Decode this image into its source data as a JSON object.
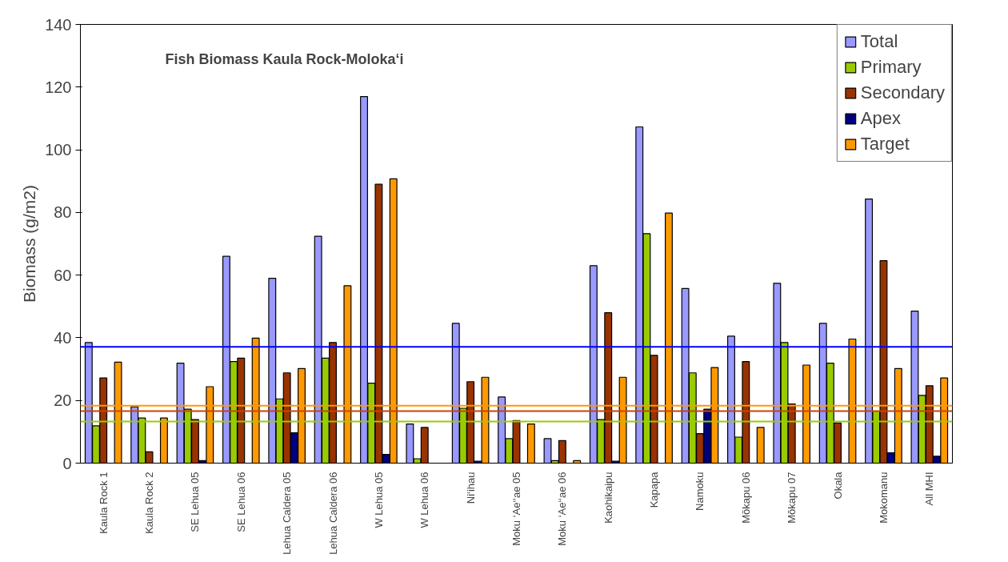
{
  "chart_data": {
    "type": "bar",
    "title": "Fish Biomass Kaula Rock-Moloka‘i",
    "ylabel": "Biomass (g/m2)",
    "categories": [
      "Kaula Rock 1",
      "Kaula Rock 2",
      "SE Lehua 05",
      "SE Lehua 06",
      "Lehua Caldera 05",
      "Lehua Caldera 06",
      "W Lehua 05",
      "W Lehua 06",
      "Ni‘ihau",
      "Moku ‘Ae‘‘ae 05",
      "Moku ‘Ae‘‘ae 06",
      "Kaohikaipu",
      "Kapapa",
      "Namoku",
      "Mōkapu 06",
      "Mōkapu 07",
      "Okala",
      "Mokomanu",
      "All MHI"
    ],
    "series": [
      {
        "name": "Total",
        "color": "#9999ff",
        "values": [
          38.5,
          18.0,
          31.9,
          66,
          59,
          72.4,
          117,
          12.5,
          44.6,
          21.1,
          7.8,
          63,
          107.3,
          55.7,
          40.5,
          57.4,
          44.6,
          84.3,
          48.5
        ]
      },
      {
        "name": "Primary",
        "color": "#99cc00",
        "values": [
          11.9,
          14.4,
          17.2,
          32.4,
          20.5,
          33.5,
          25.5,
          1.4,
          17.5,
          7.8,
          0.8,
          13.9,
          73.2,
          28.8,
          8.3,
          38.5,
          31.9,
          16.6,
          21.6
        ]
      },
      {
        "name": "Secondary",
        "color": "#993300",
        "values": [
          27.2,
          3.6,
          13.9,
          33.5,
          28.8,
          38.5,
          89,
          11.4,
          26,
          13.6,
          7.2,
          48,
          34.4,
          9.4,
          32.4,
          18.9,
          12.8,
          64.6,
          24.7
        ]
      },
      {
        "name": "Apex",
        "color": "#000080",
        "values": [
          null,
          null,
          0.8,
          null,
          9.7,
          null,
          2.8,
          null,
          0.6,
          null,
          null,
          0.6,
          null,
          17.2,
          null,
          null,
          null,
          3.3,
          2.2
        ]
      },
      {
        "name": "Target",
        "color": "#ff9900",
        "values": [
          32.2,
          14.4,
          24.4,
          39.9,
          30.2,
          56.6,
          90.7,
          null,
          27.4,
          12.5,
          0.8,
          27.4,
          79.8,
          30.5,
          11.4,
          31.3,
          39.6,
          30.2,
          27.2
        ]
      }
    ],
    "ylim": [
      0,
      140
    ],
    "yticks": [
      0,
      20,
      40,
      60,
      80,
      100,
      120,
      140
    ],
    "ref_lines": [
      {
        "axis": "y",
        "value": 37.1,
        "color": "#0000ff"
      },
      {
        "axis": "y",
        "value": 18.3,
        "color": "#ff9900"
      },
      {
        "axis": "y",
        "value": 16.6,
        "color": "#cc4400"
      },
      {
        "axis": "y",
        "value": 13.3,
        "color": "#99cc00"
      }
    ],
    "grid": false,
    "legend": "top right"
  }
}
